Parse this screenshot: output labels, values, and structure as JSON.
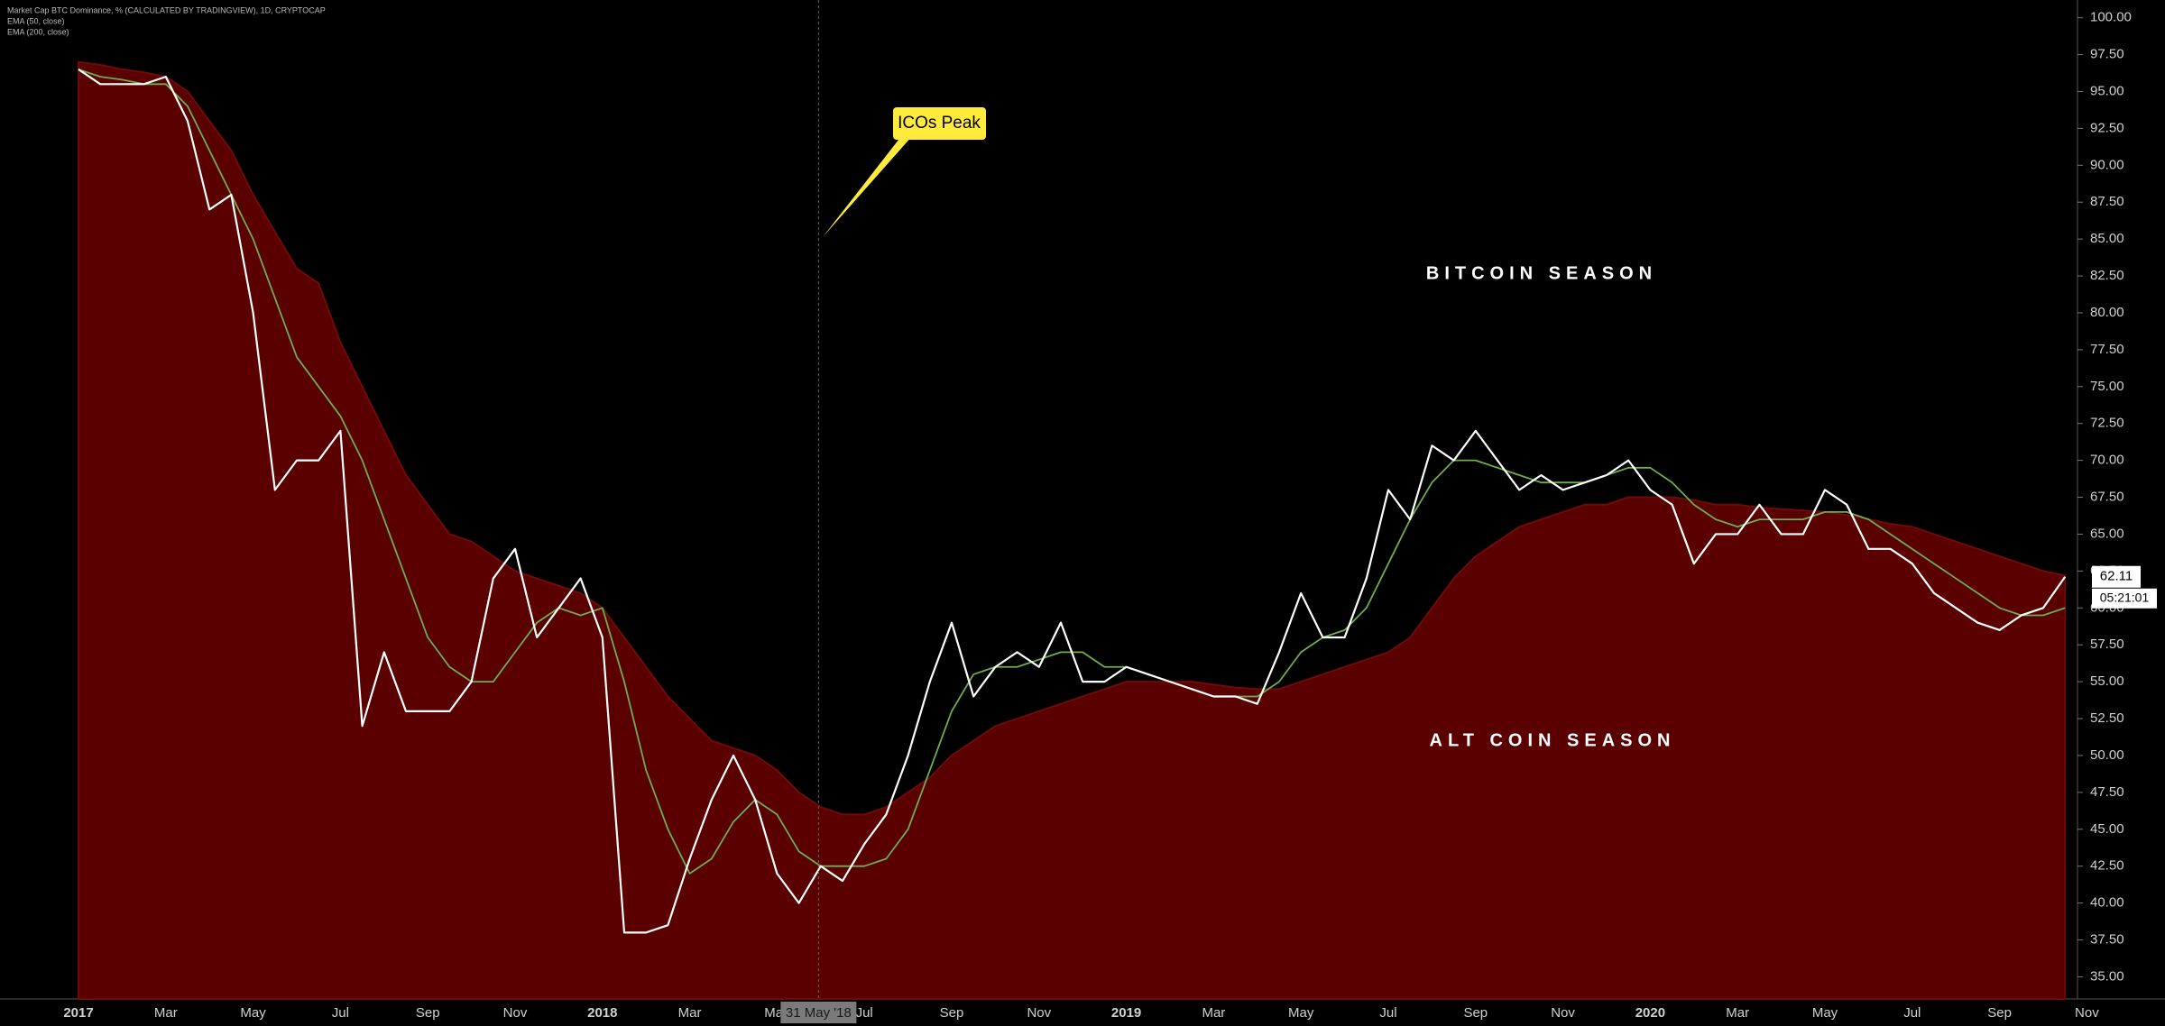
{
  "chart_data": {
    "type": "line",
    "series": [
      {
        "name": "Market Cap BTC Dominance, % (CALCULATED BY TRADINGVIEW), 1D, CRYPTOCAP",
        "color": "#ffffff",
        "values": [
          96.5,
          95.5,
          95.5,
          95.5,
          96,
          93,
          87,
          88,
          80,
          68,
          70,
          70,
          72,
          52,
          57,
          53,
          53,
          53,
          55,
          62,
          64,
          58,
          60,
          62,
          58,
          38,
          38,
          38.5,
          43,
          47,
          50,
          47,
          42,
          40,
          42.5,
          41.5,
          44,
          46,
          50,
          55,
          59,
          54,
          56,
          57,
          56,
          59,
          55,
          55,
          56,
          55.5,
          55,
          54.5,
          54,
          54,
          53.5,
          57,
          61,
          58,
          58,
          62,
          68,
          66,
          71,
          70,
          72,
          70,
          68,
          69,
          68,
          68.5,
          69,
          70,
          68,
          67,
          63,
          65,
          65,
          67,
          65,
          65,
          68,
          67,
          64,
          64,
          63,
          61,
          60,
          59,
          58.5,
          59.5,
          60,
          62.11,
          null
        ]
      },
      {
        "name": "EMA (50, close)",
        "color": "#6fae4a",
        "values": [
          96.5,
          96,
          95.8,
          95.5,
          95.5,
          94,
          91,
          88,
          85,
          81,
          77,
          75,
          73,
          70,
          66,
          62,
          58,
          56,
          55,
          55,
          57,
          59,
          60,
          59.5,
          60,
          55,
          49,
          45,
          42,
          43,
          45.5,
          47,
          46,
          43.5,
          42.5,
          42.5,
          42.5,
          43,
          45,
          49,
          53,
          55.5,
          56,
          56,
          56.5,
          57,
          57,
          56,
          56,
          55.5,
          55,
          54.5,
          54,
          54,
          54,
          55,
          57,
          58,
          58.5,
          60,
          63,
          66,
          68.5,
          70,
          70,
          69.5,
          69,
          68.5,
          68.5,
          68.5,
          69,
          69.5,
          69.5,
          68.5,
          67,
          66,
          65.5,
          66,
          66,
          66,
          66.5,
          66.5,
          66,
          65,
          64,
          63,
          62,
          61,
          60,
          59.5,
          59.5,
          60,
          null
        ]
      },
      {
        "name": "EMA (200, close)",
        "color": "#5a0000",
        "values": [
          97,
          96.8,
          96.5,
          96.3,
          96,
          95,
          93,
          91,
          88,
          85.5,
          83,
          82,
          78,
          75,
          72,
          69,
          67,
          65,
          64.5,
          63.5,
          62.5,
          62,
          61.5,
          61,
          60,
          58,
          56,
          54,
          52.5,
          51,
          50.5,
          50,
          49,
          47.5,
          46.5,
          46,
          46,
          46.5,
          47.5,
          48.5,
          50,
          51,
          52,
          52.5,
          53,
          53.5,
          54,
          54.5,
          55,
          55,
          55,
          55,
          54.8,
          54.6,
          54.5,
          54.5,
          55,
          55.5,
          56,
          56.5,
          57,
          58,
          60,
          62,
          63.5,
          64.5,
          65.5,
          66,
          66.5,
          67,
          67,
          67.5,
          67.5,
          67.5,
          67.3,
          67,
          67,
          66.8,
          66.7,
          66.6,
          66.5,
          66.3,
          66,
          65.7,
          65.5,
          65,
          64.5,
          64,
          63.5,
          63,
          62.5,
          62.2,
          null
        ]
      }
    ],
    "categories": [
      "2017",
      null,
      null,
      null,
      "Mar",
      null,
      null,
      null,
      "May",
      null,
      null,
      null,
      "Jul",
      null,
      null,
      null,
      "Sep",
      null,
      null,
      null,
      "Nov",
      null,
      null,
      null,
      "2018",
      null,
      null,
      null,
      "Mar",
      null,
      null,
      null,
      "May",
      null,
      null,
      null,
      "Jul",
      null,
      null,
      null,
      "Sep",
      null,
      null,
      null,
      "Nov",
      null,
      null,
      null,
      "2019",
      null,
      null,
      null,
      "Mar",
      null,
      null,
      null,
      "May",
      null,
      null,
      null,
      "Jul",
      null,
      null,
      null,
      "Sep",
      null,
      null,
      null,
      "Nov",
      null,
      null,
      null,
      "2020",
      null,
      null,
      null,
      "Mar",
      null,
      null,
      null,
      "May",
      null,
      null,
      null,
      "Jul",
      null,
      null,
      null,
      "Sep",
      null,
      null,
      null,
      "Nov"
    ],
    "ylim": [
      33.5,
      101.2
    ],
    "yticks": [
      {
        "value": 35,
        "label": "35.00"
      },
      {
        "value": 37.5,
        "label": "37.50"
      },
      {
        "value": 40,
        "label": "40.00"
      },
      {
        "value": 42.5,
        "label": "42.50"
      },
      {
        "value": 45,
        "label": "45.00"
      },
      {
        "value": 47.5,
        "label": "47.50"
      },
      {
        "value": 50,
        "label": "50.00"
      },
      {
        "value": 52.5,
        "label": "52.50"
      },
      {
        "value": 55,
        "label": "55.00"
      },
      {
        "value": 57.5,
        "label": "57.50"
      },
      {
        "value": 60,
        "label": "60.00"
      },
      {
        "value": 62.5,
        "label": "62.50"
      },
      {
        "value": 65,
        "label": "65.00"
      },
      {
        "value": 67.5,
        "label": "67.50"
      },
      {
        "value": 70,
        "label": "70.00"
      },
      {
        "value": 72.5,
        "label": "72.50"
      },
      {
        "value": 75,
        "label": "75.00"
      },
      {
        "value": 77.5,
        "label": "77.50"
      },
      {
        "value": 80,
        "label": "80.00"
      },
      {
        "value": 82.5,
        "label": "82.50"
      },
      {
        "value": 85,
        "label": "85.00"
      },
      {
        "value": 87.5,
        "label": "87.50"
      },
      {
        "value": 90,
        "label": "90.00"
      },
      {
        "value": 92.5,
        "label": "92.50"
      },
      {
        "value": 95,
        "label": "95.00"
      },
      {
        "value": 97.5,
        "label": "97.50"
      },
      {
        "value": 100,
        "label": "100.00"
      }
    ],
    "grid": false,
    "annotations": [
      "ICOs Peak",
      "BITCOIN SEASON",
      "ALT COIN SEASON"
    ],
    "crosshair_label": "31 May '18",
    "countdown": "05:21:01"
  }
}
